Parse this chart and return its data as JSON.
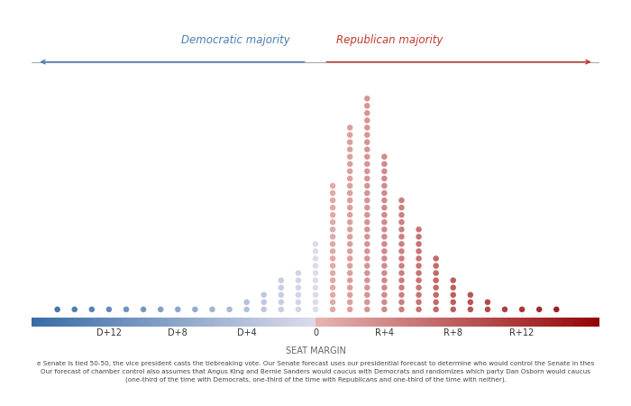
{
  "title_dem": "Democratic majority",
  "title_rep": "Republican majority",
  "xlabel": "SEAT MARGIN",
  "x_min": -16,
  "x_max": 16,
  "tick_positions": [
    -12,
    -8,
    -4,
    0,
    4,
    8,
    12
  ],
  "tick_labels": [
    "D+12",
    "D+8",
    "D+4",
    "0",
    "R+4",
    "R+8",
    "R+12"
  ],
  "histogram": {
    "-15": 1,
    "-14": 1,
    "-13": 1,
    "-12": 1,
    "-11": 1,
    "-10": 1,
    "-9": 1,
    "-8": 1,
    "-7": 1,
    "-6": 1,
    "-5": 1,
    "-4": 2,
    "-3": 3,
    "-2": 5,
    "-1": 6,
    "0": 10,
    "1": 18,
    "2": 26,
    "3": 30,
    "4": 22,
    "5": 16,
    "6": 12,
    "7": 8,
    "8": 5,
    "9": 3,
    "10": 2,
    "11": 1,
    "12": 1,
    "13": 1,
    "14": 1
  },
  "background_color": "#ffffff",
  "dem_color": "#4a7db5",
  "rep_color": "#c0392b",
  "arrow_color_dem": "#4a7db5",
  "arrow_color_rep": "#c0392b",
  "footnote_line1": "e Senate is tied 50-50, the vice president casts the tiebreaking vote. Our Senate forecast uses our presidential forecast to determine who would control the Senate in thes",
  "footnote_line2": "Our forecast of chamber control also assumes that Angus King and Bernie Sanders would caucus with Democrats and randomizes which party Dan Osborn would caucus",
  "footnote_line3": "(one-third of the time with Democrats, one-third of the time with Republicans and one-third of the time with neither)."
}
